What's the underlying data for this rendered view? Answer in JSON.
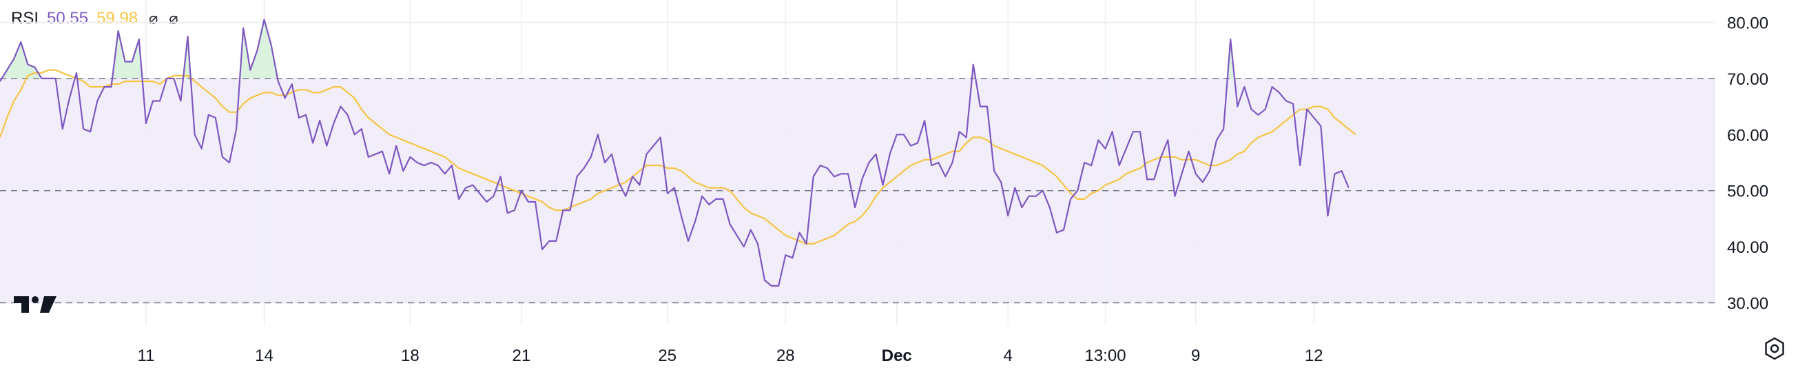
{
  "legend": {
    "name": "RSI",
    "rsi_value": "50.55",
    "ma_value": "59.98",
    "eye1": "⌀",
    "eye2": "⌀"
  },
  "colors": {
    "rsi": "#7e57c2",
    "ma": "#f5c542",
    "band_fill": "#efebf8",
    "overbought_fill": "#d9f1dd",
    "grid": "#eeeeef",
    "axis_text": "#131722",
    "dash": "#7b7b8a"
  },
  "icons": {
    "logo": "tradingview-logo-icon",
    "settings": "settings-gear-icon"
  },
  "chart_data": {
    "type": "line",
    "title": "RSI",
    "ylim": [
      26,
      84
    ],
    "yticks": [
      30,
      40,
      50,
      60,
      70,
      80
    ],
    "ytick_labels": [
      "30.00",
      "40.00",
      "50.00",
      "60.00",
      "70.00",
      "80.00"
    ],
    "bands": {
      "upper": 70,
      "middle": 50,
      "lower": 30
    },
    "x_count": 220,
    "xticks": [
      {
        "label": "11",
        "index": 21
      },
      {
        "label": "14",
        "index": 38
      },
      {
        "label": "18",
        "index": 59
      },
      {
        "label": "21",
        "index": 75
      },
      {
        "label": "25",
        "index": 96
      },
      {
        "label": "28",
        "index": 113
      },
      {
        "label": "Dec",
        "index": 129,
        "bold": true
      },
      {
        "label": "4",
        "index": 145
      },
      {
        "label": "13:00",
        "index": 159
      },
      {
        "label": "9",
        "index": 172
      },
      {
        "label": "12",
        "index": 189
      }
    ],
    "series": [
      {
        "name": "RSI",
        "values": [
          69.5,
          71.5,
          73.5,
          76.5,
          72.5,
          72.0,
          70.0,
          70.0,
          70.0,
          61.0,
          66.5,
          71.0,
          61.0,
          60.5,
          66.0,
          68.5,
          68.5,
          78.5,
          73.0,
          73.0,
          77.0,
          62.0,
          66.0,
          66.0,
          70.0,
          70.0,
          66.0,
          77.5,
          60.0,
          57.5,
          63.5,
          63.0,
          56.0,
          55.0,
          61.0,
          79.0,
          71.5,
          75.0,
          80.5,
          76.0,
          69.5,
          66.5,
          69.0,
          63.0,
          63.5,
          58.5,
          62.5,
          58.0,
          62.0,
          65.0,
          63.5,
          60.0,
          61.0,
          56.0,
          56.5,
          57.0,
          53.0,
          58.0,
          53.5,
          56.0,
          55.0,
          54.5,
          55.0,
          54.5,
          53.0,
          54.5,
          48.5,
          50.5,
          51.0,
          49.5,
          48.0,
          49.0,
          52.5,
          46.0,
          46.5,
          50.0,
          48.0,
          48.0,
          39.5,
          41.0,
          41.0,
          46.5,
          46.5,
          52.5,
          54.0,
          56.0,
          60.0,
          55.0,
          56.5,
          51.5,
          49.0,
          52.5,
          51.0,
          56.5,
          58.0,
          59.5,
          49.5,
          50.5,
          45.5,
          41.0,
          44.5,
          49.0,
          47.5,
          48.5,
          48.5,
          44.0,
          42.0,
          40.0,
          43.0,
          40.5,
          34.0,
          33.0,
          33.0,
          38.5,
          38.0,
          42.5,
          40.5,
          52.5,
          54.5,
          54.0,
          52.5,
          53.0,
          53.0,
          47.0,
          52.0,
          55.0,
          56.5,
          51.0,
          56.5,
          60.0,
          60.0,
          58.0,
          58.5,
          62.5,
          54.5,
          55.0,
          52.5,
          55.0,
          60.5,
          59.5,
          72.5,
          65.0,
          65.0,
          53.5,
          51.5,
          45.5,
          50.5,
          47.0,
          49.0,
          49.0,
          50.0,
          47.0,
          42.5,
          43.0,
          48.5,
          50.0,
          55.0,
          54.5,
          59.0,
          57.5,
          60.5,
          54.5,
          57.5,
          60.5,
          60.5,
          52.0,
          52.0,
          56.0,
          59.0,
          49.0,
          53.0,
          57.0,
          53.0,
          51.5,
          53.5,
          59.0,
          61.0,
          77.0,
          65.0,
          68.5,
          64.5,
          63.5,
          64.5,
          68.5,
          67.5,
          66.0,
          65.5,
          54.5,
          64.5,
          63.0,
          61.5,
          45.5,
          53.0,
          53.5,
          50.5
        ]
      },
      {
        "name": "",
        "values": [
          59.5,
          63.0,
          66.0,
          68.0,
          70.5,
          71.0,
          71.0,
          71.5,
          71.5,
          71.0,
          70.5,
          70.0,
          69.5,
          68.5,
          68.5,
          68.5,
          69.0,
          69.0,
          69.5,
          69.5,
          69.5,
          69.5,
          69.5,
          69.0,
          70.0,
          70.5,
          70.5,
          70.5,
          69.5,
          68.5,
          67.5,
          66.5,
          65.0,
          64.0,
          64.0,
          65.5,
          66.5,
          67.0,
          67.5,
          67.5,
          67.0,
          67.0,
          67.5,
          68.0,
          68.0,
          67.5,
          67.5,
          68.0,
          68.5,
          68.5,
          67.5,
          66.5,
          64.5,
          63.0,
          62.0,
          61.0,
          60.0,
          59.5,
          59.0,
          58.5,
          58.0,
          57.5,
          57.0,
          56.5,
          56.0,
          55.0,
          54.0,
          53.5,
          53.0,
          52.5,
          52.0,
          51.5,
          51.0,
          50.5,
          50.0,
          49.5,
          49.0,
          48.5,
          48.0,
          47.0,
          46.5,
          46.5,
          47.0,
          47.5,
          48.0,
          48.5,
          49.5,
          50.0,
          50.5,
          51.0,
          51.5,
          52.5,
          53.5,
          54.5,
          54.5,
          54.5,
          54.0,
          54.0,
          53.5,
          52.5,
          51.5,
          51.0,
          50.5,
          50.5,
          50.5,
          50.0,
          48.5,
          47.0,
          46.0,
          45.5,
          45.0,
          44.0,
          43.0,
          42.0,
          41.5,
          41.0,
          40.5,
          40.5,
          41.0,
          41.5,
          42.0,
          43.0,
          44.0,
          44.5,
          45.5,
          47.0,
          49.0,
          50.5,
          51.5,
          52.5,
          53.5,
          54.5,
          55.0,
          55.5,
          55.5,
          56.0,
          56.5,
          57.0,
          57.0,
          58.5,
          59.5,
          59.5,
          59.0,
          58.0,
          57.5,
          57.0,
          56.5,
          56.0,
          55.5,
          55.0,
          54.5,
          53.5,
          52.5,
          51.0,
          49.5,
          48.5,
          48.5,
          49.5,
          50.0,
          51.0,
          51.5,
          52.0,
          53.0,
          53.5,
          54.0,
          55.0,
          55.5,
          56.0,
          56.0,
          56.0,
          55.5,
          55.5,
          55.5,
          55.0,
          54.5,
          54.5,
          55.0,
          55.5,
          56.5,
          57.0,
          58.5,
          59.5,
          60.0,
          60.5,
          61.5,
          62.5,
          63.5,
          64.5,
          64.5,
          65.0,
          65.0,
          64.5,
          63.0,
          62.0,
          61.0,
          60.0
        ]
      }
    ]
  }
}
